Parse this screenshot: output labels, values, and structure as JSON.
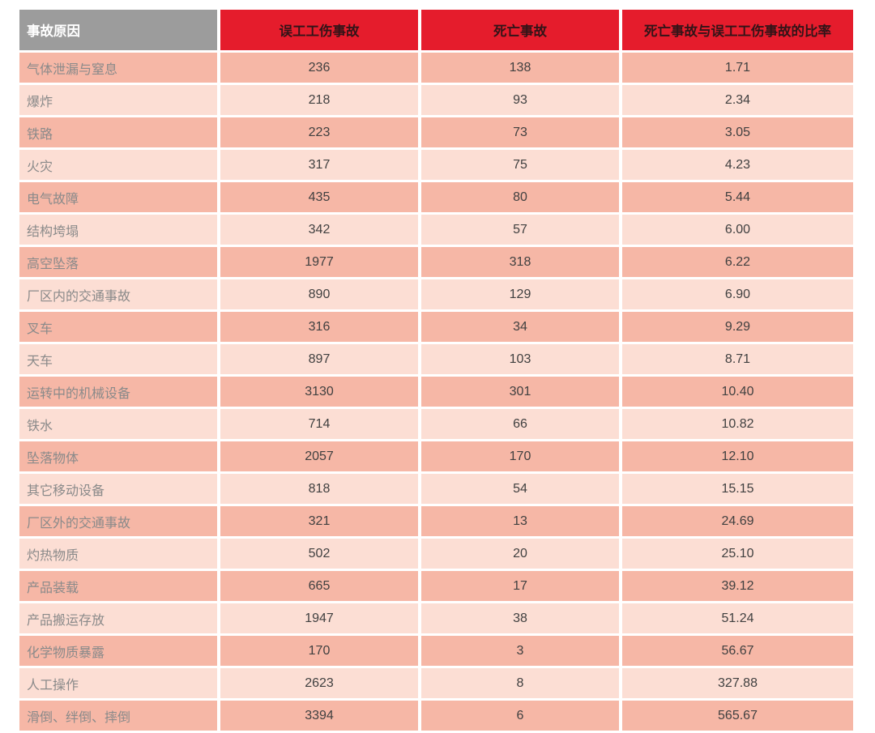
{
  "table": {
    "columns": [
      {
        "label": "事故原因"
      },
      {
        "label": "误工工伤事故"
      },
      {
        "label": "死亡事故"
      },
      {
        "label": "死亡事故与误工工伤事故的比率"
      }
    ],
    "rows": [
      [
        "气体泄漏与窒息",
        "236",
        "138",
        "1.71"
      ],
      [
        "爆炸",
        "218",
        "93",
        "2.34"
      ],
      [
        "铁路",
        "223",
        "73",
        "3.05"
      ],
      [
        "火灾",
        "317",
        "75",
        "4.23"
      ],
      [
        "电气故障",
        "435",
        "80",
        "5.44"
      ],
      [
        "结构垮塌",
        "342",
        "57",
        "6.00"
      ],
      [
        "高空坠落",
        "1977",
        "318",
        "6.22"
      ],
      [
        "厂区内的交通事故",
        "890",
        "129",
        "6.90"
      ],
      [
        "叉车",
        "316",
        "34",
        "9.29"
      ],
      [
        "天车",
        "897",
        "103",
        "8.71"
      ],
      [
        "运转中的机械设备",
        "3130",
        "301",
        "10.40"
      ],
      [
        "铁水",
        "714",
        "66",
        "10.82"
      ],
      [
        "坠落物体",
        "2057",
        "170",
        "12.10"
      ],
      [
        "其它移动设备",
        "818",
        "54",
        "15.15"
      ],
      [
        "厂区外的交通事故",
        "321",
        "13",
        "24.69"
      ],
      [
        "灼热物质",
        "502",
        "20",
        "25.10"
      ],
      [
        "产品装载",
        "665",
        "17",
        "39.12"
      ],
      [
        "产品搬运存放",
        "1947",
        "38",
        "51.24"
      ],
      [
        "化学物质暴露",
        "170",
        "3",
        "56.67"
      ],
      [
        "人工操作",
        "2623",
        "8",
        "327.88"
      ],
      [
        "滑倒、绊倒、摔倒",
        "3394",
        "6",
        "565.67"
      ]
    ],
    "colors": {
      "header_gray": "#9c9c9c",
      "header_red": "#e51c2c",
      "row_dark_pink": "#f6b7a6",
      "row_light_pink": "#fcded4",
      "header_gray_text": "#ffffff",
      "header_red_text": "#331418",
      "label_text": "#8a8a8a",
      "number_text": "#404040"
    }
  },
  "chart_data": {
    "type": "table",
    "title": "",
    "columns": [
      "事故原因",
      "误工工伤事故",
      "死亡事故",
      "死亡事故与误工工伤事故的比率"
    ],
    "rows": [
      [
        "气体泄漏与窒息",
        236,
        138,
        1.71
      ],
      [
        "爆炸",
        218,
        93,
        2.34
      ],
      [
        "铁路",
        223,
        73,
        3.05
      ],
      [
        "火灾",
        317,
        75,
        4.23
      ],
      [
        "电气故障",
        435,
        80,
        5.44
      ],
      [
        "结构垮塌",
        342,
        57,
        6.0
      ],
      [
        "高空坠落",
        1977,
        318,
        6.22
      ],
      [
        "厂区内的交通事故",
        890,
        129,
        6.9
      ],
      [
        "叉车",
        316,
        34,
        9.29
      ],
      [
        "天车",
        897,
        103,
        8.71
      ],
      [
        "运转中的机械设备",
        3130,
        301,
        10.4
      ],
      [
        "铁水",
        714,
        66,
        10.82
      ],
      [
        "坠落物体",
        2057,
        170,
        12.1
      ],
      [
        "其它移动设备",
        818,
        54,
        15.15
      ],
      [
        "厂区外的交通事故",
        321,
        13,
        24.69
      ],
      [
        "灼热物质",
        502,
        20,
        25.1
      ],
      [
        "产品装载",
        665,
        17,
        39.12
      ],
      [
        "产品搬运存放",
        1947,
        38,
        51.24
      ],
      [
        "化学物质暴露",
        170,
        3,
        56.67
      ],
      [
        "人工操作",
        2623,
        8,
        327.88
      ],
      [
        "滑倒、绊倒、摔倒",
        3394,
        6,
        565.67
      ]
    ],
    "layout": {
      "row_striping": "odd-rows-darker",
      "header_row": true,
      "grid": "white-gaps"
    }
  }
}
